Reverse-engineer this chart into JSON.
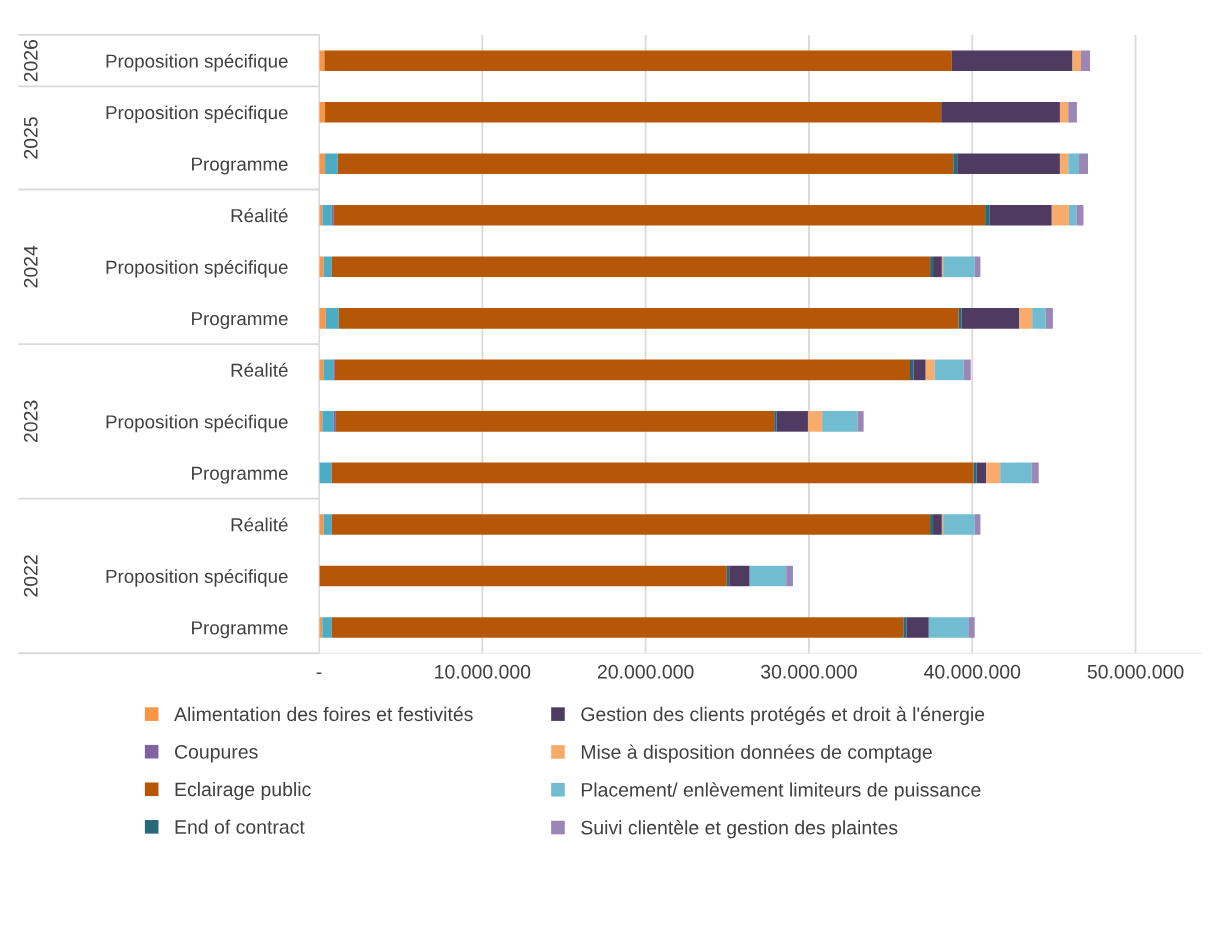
{
  "chart_data": {
    "type": "bar",
    "orientation": "horizontal",
    "stacked": true,
    "categories": [
      "Proposition spécifique",
      "Proposition spécifique",
      "Programme",
      "Réalité",
      "Proposition spécifique",
      "Programme",
      "Réalité",
      "Proposition spécifique",
      "Programme",
      "Réalité",
      "Proposition spécifique",
      "Programme"
    ],
    "annotations": [
      "2026",
      "2025",
      "2024",
      "2023",
      "2022"
    ],
    "series": [
      {
        "name": "Alimentation des foires et festivités",
        "color": "#f79646",
        "values": [
          330000,
          370000,
          370000,
          200000,
          290000,
          410000,
          290000,
          200000,
          null,
          290000,
          null,
          200000
        ]
      },
      {
        "color": "#4bacc6",
        "values": [
          null,
          null,
          780000,
          580000,
          490000,
          800000,
          590000,
          700000,
          770000,
          490000,
          null,
          580000
        ]
      },
      {
        "name": "Coupures",
        "color": "#8064a2",
        "values": [
          null,
          null,
          null,
          120000,
          null,
          null,
          90000,
          130000,
          null,
          null,
          null,
          null
        ]
      },
      {
        "name": "Eclairage public",
        "color": "#b65708",
        "values": [
          38420000,
          37730000,
          37690000,
          39890000,
          36640000,
          37960000,
          35220000,
          26840000,
          39310000,
          36640000,
          24970000,
          35000000
        ]
      },
      {
        "name": "End of contract",
        "color": "#276a7c",
        "values": [
          null,
          null,
          240000,
          260000,
          180000,
          180000,
          210000,
          150000,
          180000,
          180000,
          150000,
          200000
        ]
      },
      {
        "name": "Gestion des clients protégés et droit à l'énergie",
        "color": "#4f3b62",
        "values": [
          7390000,
          7270000,
          6290000,
          3820000,
          540000,
          3530000,
          750000,
          1920000,
          600000,
          540000,
          1250000,
          1360000
        ]
      },
      {
        "name": "Mise à disposition données de comptage",
        "color": "#f9ab6b",
        "values": [
          520000,
          510000,
          510000,
          1050000,
          80000,
          790000,
          540000,
          870000,
          850000,
          80000,
          null,
          null
        ]
      },
      {
        "name": "Placement/ enlèvement limiteurs de puissance",
        "color": "#71bcd1",
        "values": [
          null,
          null,
          660000,
          460000,
          1930000,
          830000,
          1790000,
          2170000,
          1920000,
          1930000,
          2240000,
          2420000
        ]
      },
      {
        "name": "Suivi clientèle et gestion des plaintes",
        "color": "#9b86b8",
        "values": [
          550000,
          530000,
          550000,
          430000,
          350000,
          440000,
          430000,
          370000,
          440000,
          350000,
          410000,
          390000
        ]
      }
    ],
    "xlim": [
      0,
      54000000
    ],
    "xticks": [
      {
        "value": 0,
        "label": "-"
      },
      {
        "value": 10000000,
        "label": "10.000.000"
      },
      {
        "value": 20000000,
        "label": "20.000.000"
      },
      {
        "value": 30000000,
        "label": "30.000.000"
      },
      {
        "value": 40000000,
        "label": "40.000.000"
      },
      {
        "value": 50000000,
        "label": "50.000.000"
      }
    ],
    "grid": "x",
    "legend": "bottom"
  }
}
